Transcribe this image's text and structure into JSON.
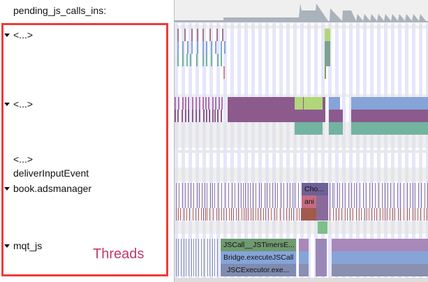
{
  "counter": {
    "label": "pending_js_calls_ins:"
  },
  "threads": [
    {
      "label": "<...>",
      "expanded": true
    },
    {
      "label": "<...>",
      "expanded": true
    },
    {
      "label": "<...>",
      "expanded": false
    },
    {
      "label": "deliverInputEvent",
      "expanded": false
    },
    {
      "label": "book.adsmanager",
      "expanded": true
    },
    {
      "label": "mqt_js",
      "expanded": true
    }
  ],
  "annotation": {
    "label": "Threads",
    "color": "#f23a3a"
  },
  "slices": {
    "cho": "Cho...",
    "ani": "ani",
    "jscall": "JSCall__JSTimersE...",
    "bridge": "Bridge.executeJSCall",
    "jscexecutor": "JSCExecutor.exe..."
  },
  "colors": {
    "purple": "#8c5a8c",
    "blue": "#86a4d8",
    "teal": "#72b4a0",
    "lime": "#b2d67a",
    "green": "#6f9a6f",
    "rose": "#c66c82"
  }
}
